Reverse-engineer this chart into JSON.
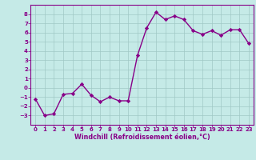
{
  "x": [
    0,
    1,
    2,
    3,
    4,
    5,
    6,
    7,
    8,
    9,
    10,
    11,
    12,
    13,
    14,
    15,
    16,
    17,
    18,
    19,
    20,
    21,
    22,
    23
  ],
  "y": [
    -1.2,
    -3.0,
    -2.8,
    -0.7,
    -0.6,
    0.4,
    -0.8,
    -1.5,
    -1.0,
    -1.4,
    -1.4,
    3.5,
    6.5,
    8.2,
    7.4,
    7.8,
    7.4,
    6.2,
    5.8,
    6.2,
    5.7,
    6.3,
    6.3,
    4.8
  ],
  "line_color": "#880088",
  "marker": "D",
  "marker_size": 2.2,
  "bg_color": "#c5eae7",
  "grid_color": "#a0c8c5",
  "xlabel": "Windchill (Refroidissement éolien,°C)",
  "xlim": [
    -0.5,
    23.5
  ],
  "ylim": [
    -4,
    9
  ],
  "yticks": [
    -3,
    -2,
    -1,
    0,
    1,
    2,
    3,
    4,
    5,
    6,
    7,
    8
  ],
  "xticks": [
    0,
    1,
    2,
    3,
    4,
    5,
    6,
    7,
    8,
    9,
    10,
    11,
    12,
    13,
    14,
    15,
    16,
    17,
    18,
    19,
    20,
    21,
    22,
    23
  ],
  "line_width": 1.0,
  "font_color": "#880088",
  "label_fontsize": 5.8,
  "tick_fontsize": 5.0,
  "spine_color": "#880088"
}
